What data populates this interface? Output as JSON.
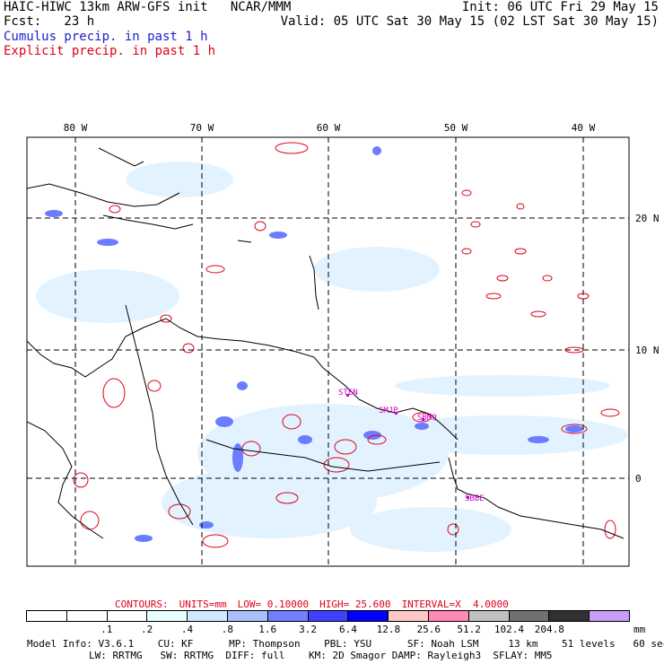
{
  "header": {
    "title": "HAIC-HIWC 13km ARW-GFS init   NCAR/MMM",
    "init": "Init: 06 UTC Fri 29 May 15",
    "fcst": "Fcst:   23 h",
    "valid": "Valid: 05 UTC Sat 30 May 15 (02 LST Sat 30 May 15)",
    "legend_cumulus": "Cumulus precip. in past 1 h",
    "legend_explicit": "Explicit precip. in past 1 h",
    "cumulus_color": "#2020c8",
    "explicit_color": "#e0001a"
  },
  "map": {
    "lon_labels": [
      "80 W",
      "70 W",
      "60 W",
      "50 W",
      "40 W"
    ],
    "lat_labels": [
      "20 N",
      "10 N",
      "0"
    ],
    "stations": [
      "STEN",
      "SMJP",
      "SBMQ",
      "SBBE"
    ]
  },
  "contours": {
    "label": "CONTOURS:",
    "units": "UNITS=mm",
    "low": "LOW= 0.10000",
    "high": "HIGH= 25.600",
    "interval": "INTERVAL=X  4.0000"
  },
  "colorbar": {
    "colors": [
      "#ffffff",
      "#ffffff",
      "#ffffff",
      "#e8ffff",
      "#cfe8ff",
      "#a8bfff",
      "#7080ff",
      "#4040ff",
      "#0000ff",
      "#ffc8c8",
      "#ff88b4",
      "#c0c0c0",
      "#707070",
      "#303030",
      "#c89cf8"
    ],
    "ticks": [
      ".1",
      ".2",
      ".4",
      ".8",
      "1.6",
      "3.2",
      "6.4",
      "12.8",
      "25.6",
      "51.2",
      "102.4",
      "204.8"
    ],
    "units": "mm"
  },
  "model_info": {
    "line1": "Model Info: V3.6.1    CU: KF      MP: Thompson    PBL: YSU      SF: Noah LSM     13 km    51 levels   60 sec",
    "line2": "LW: RRTMG   SW: RRTMG  DIFF: full    KM: 2D Smagor DAMP: Rayleigh3  SFLAY: MM5"
  }
}
